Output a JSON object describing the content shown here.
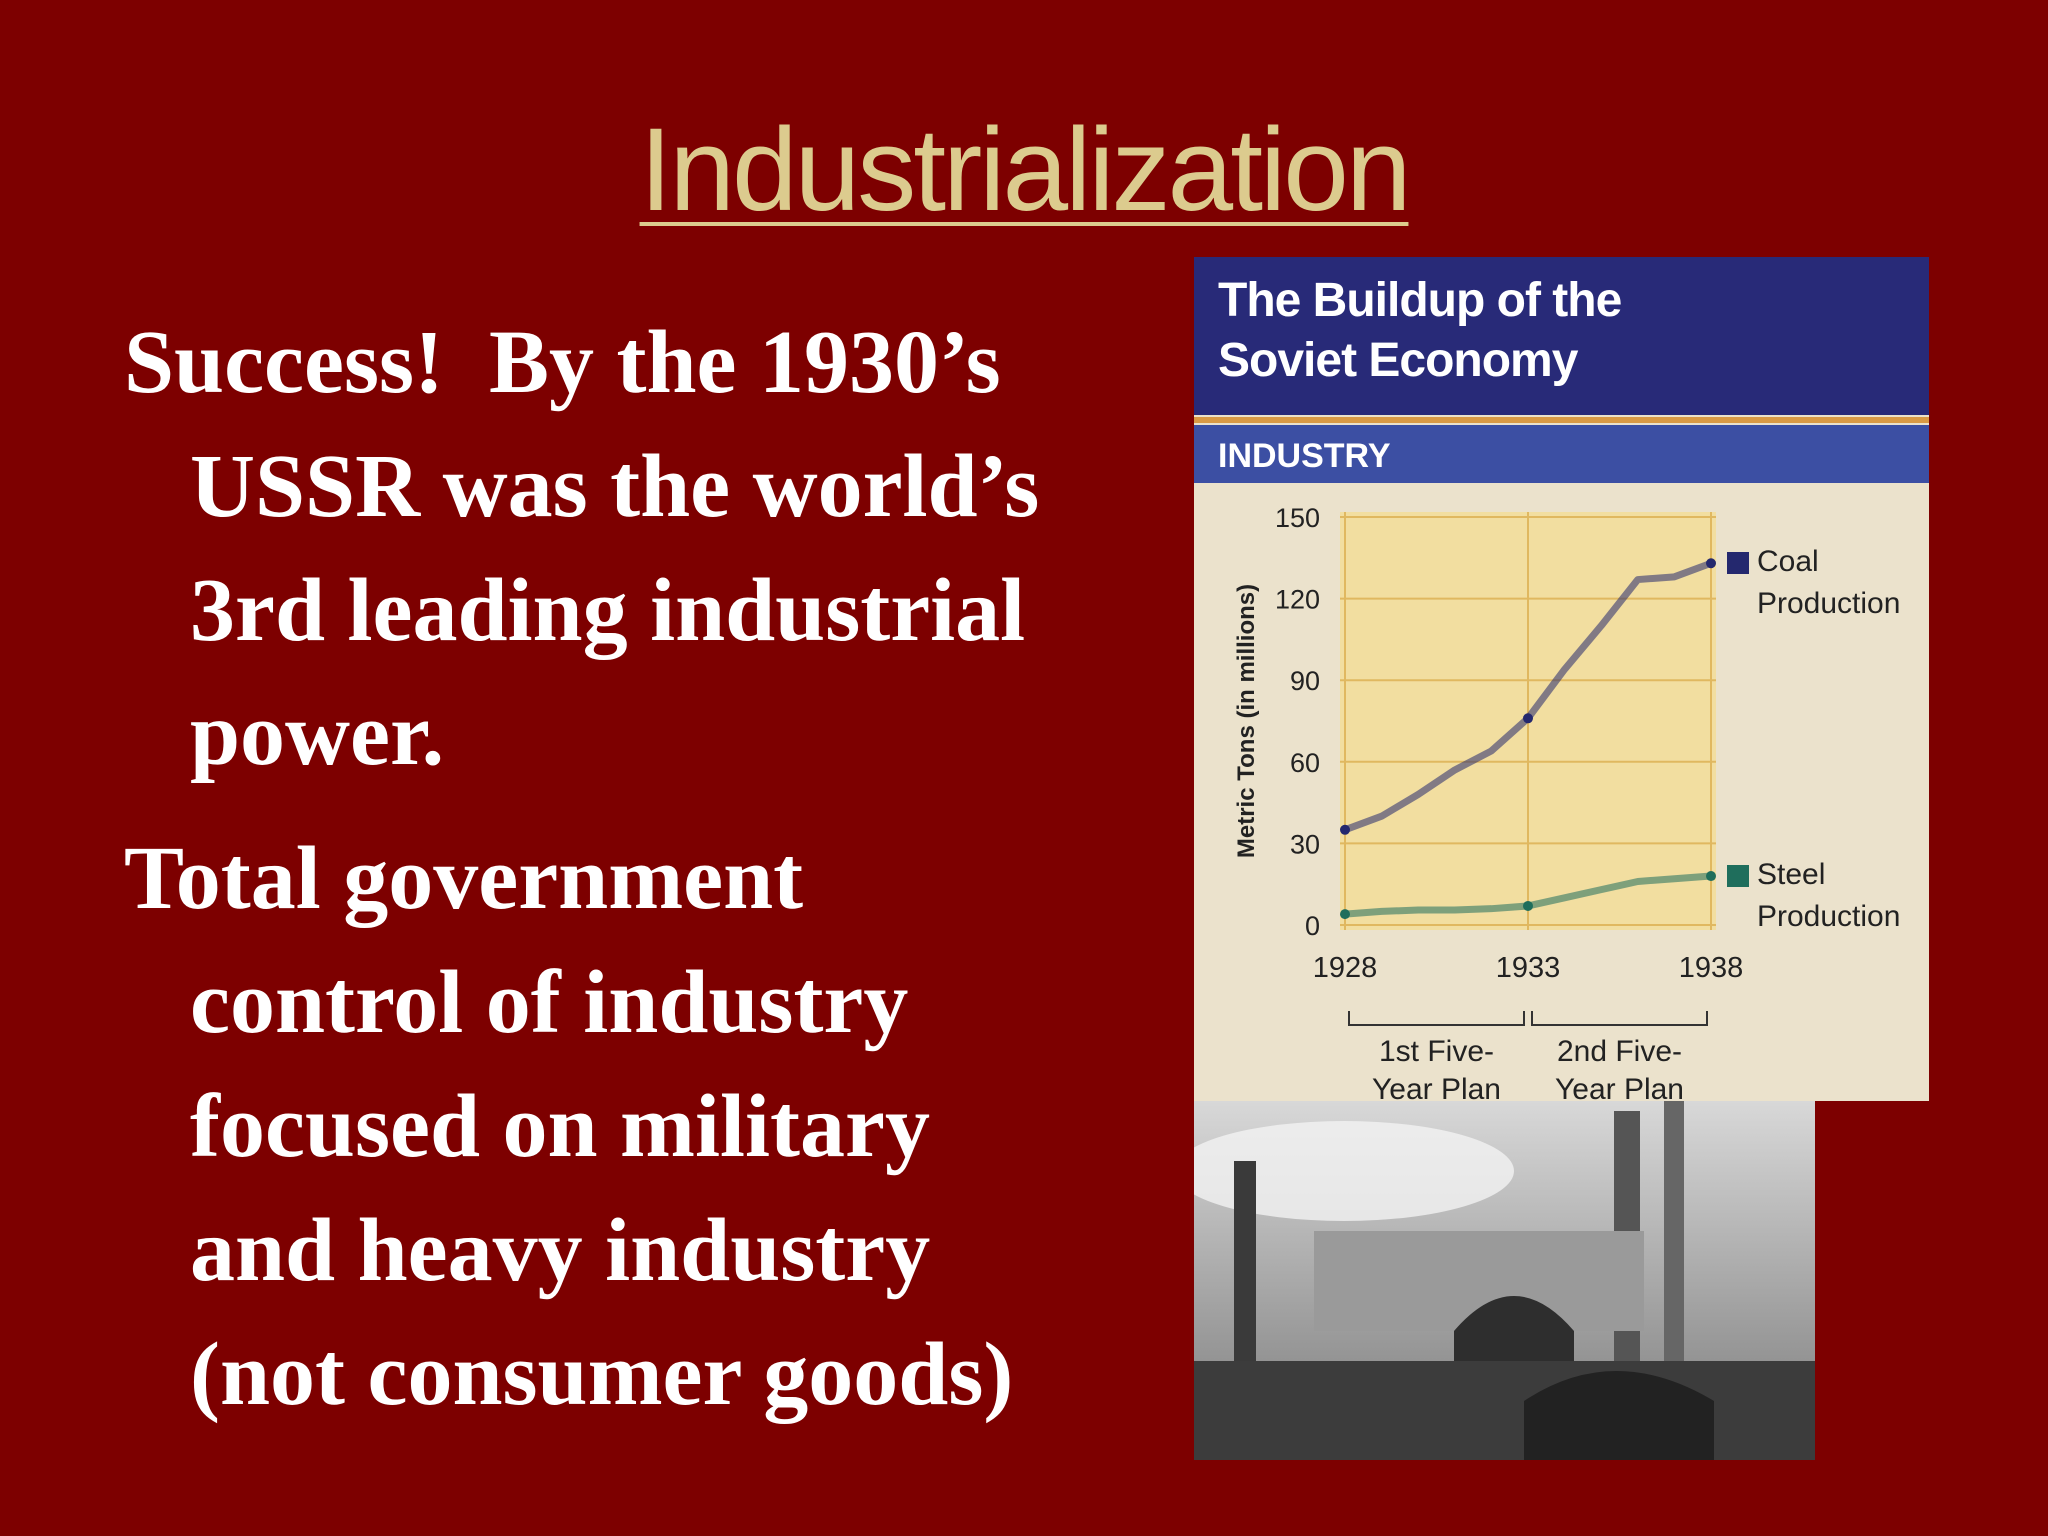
{
  "slide": {
    "title": "Industrialization",
    "bullets": [
      [
        "Success!  By the 1930’s",
        "USSR was the world’s",
        "3rd leading industrial",
        "power."
      ],
      [
        "Total government",
        "control of industry",
        "focused on military",
        "and heavy industry",
        "(not consumer goods)"
      ]
    ]
  },
  "chart_data": {
    "type": "line",
    "title": "The Buildup of the Soviet Economy",
    "subtitle": "INDUSTRY",
    "y_label": "Metric Tons (in millions)",
    "x": [
      1928,
      1929,
      1930,
      1931,
      1932,
      1933,
      1934,
      1935,
      1936,
      1937,
      1938
    ],
    "series": [
      {
        "name": "Coal Production",
        "color": "#24286e",
        "values": [
          35,
          40,
          48,
          57,
          64,
          76,
          94,
          110,
          127,
          128,
          133
        ]
      },
      {
        "name": "Steel Production",
        "color": "#1f6e5c",
        "values": [
          4,
          5,
          5.5,
          5.5,
          6,
          7,
          10,
          13,
          16,
          17,
          18
        ]
      }
    ],
    "xlim": [
      1928,
      1938
    ],
    "xticks": [
      1928,
      1933,
      1938
    ],
    "ylim": [
      0,
      150
    ],
    "yticks": [
      0,
      30,
      60,
      90,
      120,
      150
    ],
    "grid": true,
    "annotations": [
      {
        "text": "1st Five-Year Plan",
        "from": 1928,
        "to": 1933
      },
      {
        "text": "2nd Five-Year Plan",
        "from": 1933,
        "to": 1938
      }
    ]
  }
}
